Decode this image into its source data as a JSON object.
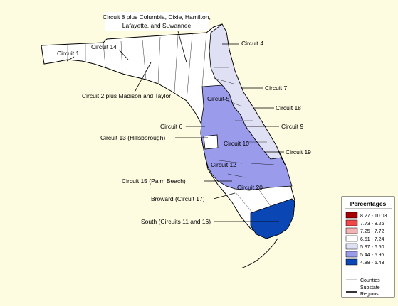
{
  "map": {
    "background": "#fdfbe0",
    "region_colors": {
      "white": "#ffffff",
      "light": "#dfe0f4",
      "mid": "#9a9ceb",
      "dark": "#0a46b4"
    },
    "labels": {
      "c8": [
        "Circuit 8 plus Columbia, Dixie, Hamilton,",
        "Lafayette, and Suwannee"
      ],
      "c1": "Circuit 1",
      "c14": "Circuit 14",
      "c4": "Circuit 4",
      "c2": "Circuit 2 plus Madison and Taylor",
      "c7": "Circuit 7",
      "c5": "Circuit 5",
      "c18": "Circuit 18",
      "c6": "Circuit 6",
      "c9": "Circuit 9",
      "c13": "Circuit 13 (Hillsborough)",
      "c10": "Circuit 10",
      "c19": "Circuit 19",
      "c12": "Circuit 12",
      "c15": "Circuit 15 (Palm Beach)",
      "c20": "Circuit 20",
      "c17": "Broward (Circuit 17)",
      "south": "South (Circuits 11 and 16)"
    }
  },
  "legend": {
    "title": "Percentages",
    "items": [
      {
        "label": "8.27 - 10.03",
        "color": "#a80000"
      },
      {
        "label": "7.73 - 8.26",
        "color": "#f04848"
      },
      {
        "label": "7.25 - 7.72",
        "color": "#f4b4b4"
      },
      {
        "label": "6.51 - 7.24",
        "color": "#ffffff"
      },
      {
        "label": "5.97 - 6.50",
        "color": "#dfe0f4"
      },
      {
        "label": "5.44 - 5.96",
        "color": "#9a9ceb"
      },
      {
        "label": "4.88 - 5.43",
        "color": "#0a46b4"
      }
    ],
    "counties_label": "Counties",
    "substate_label": [
      "Substate",
      "Regions"
    ]
  }
}
